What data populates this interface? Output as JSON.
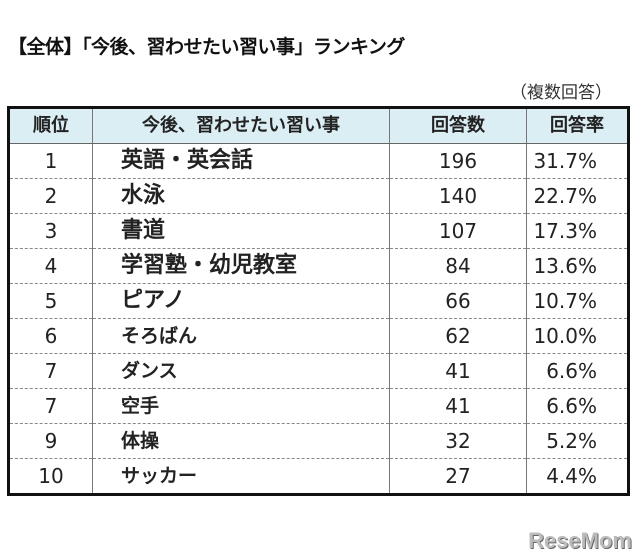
{
  "title": "【全体】「今後、習わせたい習い事」ランキング",
  "note": "（複数回答）",
  "table": {
    "headers": [
      "順位",
      "今後、習わせたい習い事",
      "回答数",
      "回答率"
    ],
    "rows": [
      {
        "rank": "1",
        "item": "英語・英会話",
        "count": "196",
        "rate": "31.7%"
      },
      {
        "rank": "2",
        "item": "水泳",
        "count": "140",
        "rate": "22.7%"
      },
      {
        "rank": "3",
        "item": "書道",
        "count": "107",
        "rate": "17.3%"
      },
      {
        "rank": "4",
        "item": "学習塾・幼児教室",
        "count": "84",
        "rate": "13.6%"
      },
      {
        "rank": "5",
        "item": "ピアノ",
        "count": "66",
        "rate": "10.7%"
      },
      {
        "rank": "6",
        "item": "そろばん",
        "count": "62",
        "rate": "10.0%"
      },
      {
        "rank": "7",
        "item": "ダンス",
        "count": "41",
        "rate": "6.6%"
      },
      {
        "rank": "7",
        "item": "空手",
        "count": "41",
        "rate": "6.6%"
      },
      {
        "rank": "9",
        "item": "体操",
        "count": "32",
        "rate": "5.2%"
      },
      {
        "rank": "10",
        "item": "サッカー",
        "count": "27",
        "rate": "4.4%"
      }
    ]
  },
  "watermark": "ReseMom",
  "colors": {
    "header_bg": "#dbeef4",
    "border": "#111111"
  }
}
